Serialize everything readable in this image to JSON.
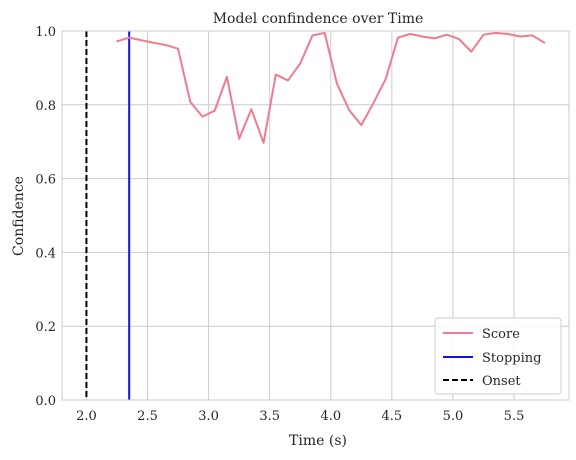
{
  "colors": {
    "score": "#f07b8f",
    "stopping": "#1111e0",
    "onset": "#000000",
    "grid": "#cccccc",
    "text": "#262626"
  },
  "chart_data": {
    "type": "line",
    "title": "Model confindence over Time",
    "xlabel": "Time (s)",
    "ylabel": "Confidence",
    "xlim": [
      1.8,
      5.95
    ],
    "ylim": [
      0.0,
      1.0
    ],
    "xticks": [
      2.0,
      2.5,
      3.0,
      3.5,
      4.0,
      4.5,
      5.0,
      5.5
    ],
    "xtick_labels": [
      "2.0",
      "2.5",
      "3.0",
      "3.5",
      "4.0",
      "4.5",
      "5.0",
      "5.5"
    ],
    "yticks": [
      0.0,
      0.2,
      0.4,
      0.6,
      0.8,
      1.0
    ],
    "ytick_labels": [
      "0.0",
      "0.2",
      "0.4",
      "0.6",
      "0.8",
      "1.0"
    ],
    "grid": true,
    "legend_position": "lower-right",
    "series": [
      {
        "name": "Score",
        "x": [
          2.25,
          2.35,
          2.45,
          2.55,
          2.65,
          2.75,
          2.85,
          2.95,
          3.05,
          3.15,
          3.25,
          3.35,
          3.45,
          3.55,
          3.65,
          3.75,
          3.85,
          3.95,
          4.05,
          4.15,
          4.25,
          4.35,
          4.45,
          4.55,
          4.65,
          4.75,
          4.85,
          4.95,
          5.05,
          5.15,
          5.25,
          5.35,
          5.45,
          5.55,
          5.65,
          5.75
        ],
        "y": [
          0.972,
          0.982,
          0.975,
          0.968,
          0.962,
          0.952,
          0.808,
          0.768,
          0.784,
          0.876,
          0.708,
          0.788,
          0.697,
          0.882,
          0.866,
          0.912,
          0.988,
          0.995,
          0.858,
          0.786,
          0.745,
          0.805,
          0.87,
          0.982,
          0.992,
          0.985,
          0.98,
          0.99,
          0.978,
          0.944,
          0.99,
          0.995,
          0.992,
          0.985,
          0.988,
          0.968
        ]
      }
    ],
    "vlines": [
      {
        "name": "Stopping",
        "x": 2.35,
        "style": "solid"
      },
      {
        "name": "Onset",
        "x": 2.0,
        "style": "dashed"
      }
    ],
    "legend": [
      "Score",
      "Stopping",
      "Onset"
    ]
  }
}
